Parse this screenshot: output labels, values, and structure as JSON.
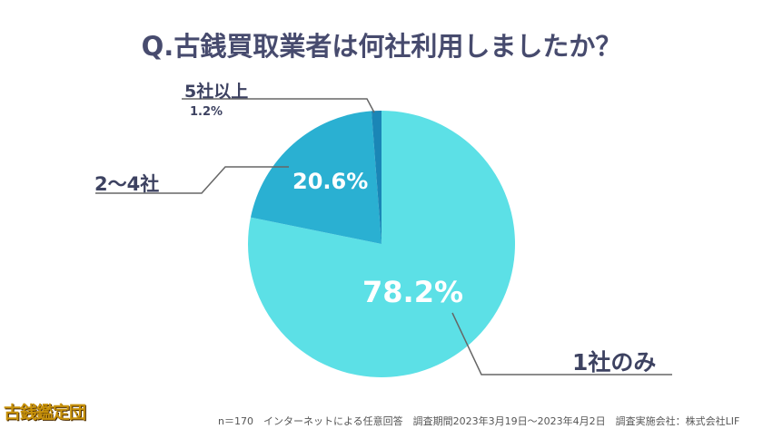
{
  "chart_data": {
    "type": "pie",
    "title": "Q.古銭買取業者は何社利用しましたか？",
    "slices": [
      {
        "label": "1社のみ",
        "value": 78.2,
        "display": "78.2%",
        "color": "#5ce0e6"
      },
      {
        "label": "2〜4社",
        "value": 20.6,
        "display": "20.6%",
        "color": "#2ab0d2"
      },
      {
        "label": "5社以上",
        "value": 1.2,
        "display": "1.2%",
        "color": "#1a86b6"
      }
    ],
    "start": "top",
    "direction": "clockwise"
  },
  "footer": "n＝170　インターネットによる任意回答　調査期間2023年3月19日〜2023年4月2日　調査実施会社：株式会社LIF",
  "logo": "古銭鑑定団"
}
